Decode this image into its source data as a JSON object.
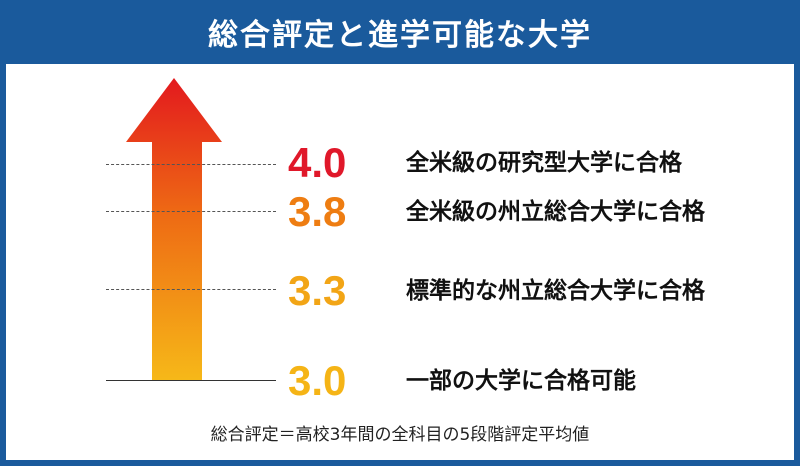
{
  "title": "総合評定と進学可能な大学",
  "levels": [
    {
      "score": "4.0",
      "text": "全米級の研究型大学に合格",
      "color": "#e0182a"
    },
    {
      "score": "3.8",
      "text": "全米級の州立総合大学に合格",
      "color": "#ee7d12"
    },
    {
      "score": "3.3",
      "text": "標準的な州立総合大学に合格",
      "color": "#f2a516"
    },
    {
      "score": "3.0",
      "text": "一部の大学に合格可能",
      "color": "#f5b416"
    }
  ],
  "footnote": "総合評定＝高校3年間の全科目の5段階評定平均値",
  "colors": {
    "frame": "#1a5a9c",
    "arrow_top": "#e3191e",
    "arrow_bottom": "#f6b818"
  }
}
